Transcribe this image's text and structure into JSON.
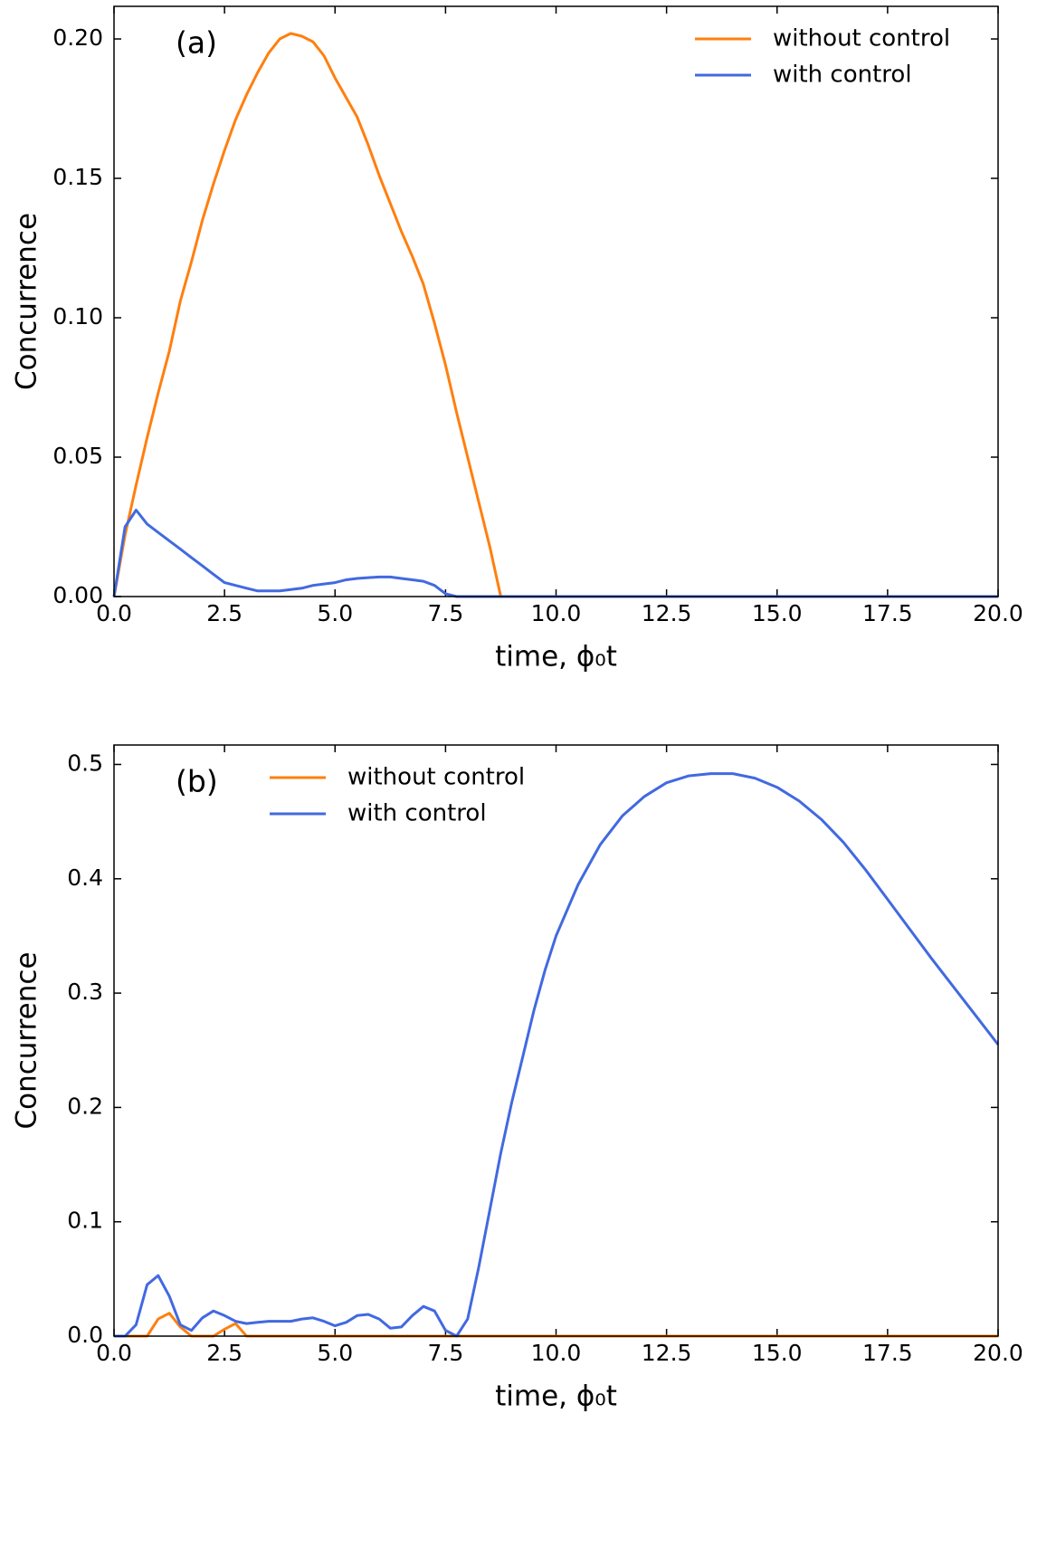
{
  "chart_data": [
    {
      "type": "line",
      "annotation": "(a)",
      "x_label": "time, ϕ₀t",
      "y_label": "Concurrence",
      "legend": "upper right",
      "x": [
        0,
        0.25,
        0.5,
        0.75,
        1,
        1.25,
        1.5,
        1.75,
        2,
        2.25,
        2.5,
        2.75,
        3,
        3.25,
        3.5,
        3.75,
        4,
        4.25,
        4.5,
        4.75,
        5,
        5.25,
        5.5,
        5.75,
        6,
        6.25,
        6.5,
        6.75,
        7,
        7.25,
        7.5,
        7.75,
        8,
        8.25,
        8.5,
        8.75,
        9,
        9.25,
        9.5,
        9.75,
        10,
        10.5,
        11,
        11.5,
        12,
        12.5,
        13,
        13.5,
        14,
        14.5,
        15,
        15.5,
        16,
        16.5,
        17,
        17.5,
        18,
        18.5,
        19,
        19.5,
        20
      ],
      "series": [
        {
          "name": "without control",
          "color": "#ff7f0e",
          "values": [
            0,
            0.022,
            0.04,
            0.057,
            0.073,
            0.088,
            0.106,
            0.12,
            0.135,
            0.148,
            0.16,
            0.171,
            0.18,
            0.188,
            0.195,
            0.2,
            0.202,
            0.201,
            0.199,
            0.194,
            0.186,
            0.179,
            0.172,
            0.162,
            0.151,
            0.141,
            0.131,
            0.122,
            0.112,
            0.098,
            0.083,
            0.066,
            0.05,
            0.034,
            0.018,
            0,
            0,
            0,
            0,
            0,
            0,
            0,
            0,
            0,
            0,
            0,
            0,
            0,
            0,
            0,
            0,
            0,
            0,
            0,
            0,
            0,
            0,
            0,
            0,
            0,
            0
          ]
        },
        {
          "name": "with control",
          "color": "#4169e1",
          "values": [
            0,
            0.025,
            0.031,
            0.026,
            0.023,
            0.02,
            0.017,
            0.014,
            0.011,
            0.008,
            0.005,
            0.004,
            0.003,
            0.002,
            0.002,
            0.002,
            0.0025,
            0.003,
            0.004,
            0.0045,
            0.005,
            0.006,
            0.0065,
            0.0068,
            0.007,
            0.007,
            0.0065,
            0.006,
            0.0055,
            0.004,
            0.001,
            0,
            0,
            0,
            0,
            0,
            0,
            0,
            0,
            0,
            0,
            0,
            0,
            0,
            0,
            0,
            0,
            0,
            0,
            0,
            0,
            0,
            0,
            0,
            0,
            0,
            0,
            0,
            0,
            0,
            0
          ]
        }
      ],
      "xlim": [
        0,
        20
      ],
      "xticks": [
        {
          "value": 0,
          "label": "0.0"
        },
        {
          "value": 2.5,
          "label": "2.5"
        },
        {
          "value": 5,
          "label": "5.0"
        },
        {
          "value": 7.5,
          "label": "7.5"
        },
        {
          "value": 10,
          "label": "10.0"
        },
        {
          "value": 12.5,
          "label": "12.5"
        },
        {
          "value": 15,
          "label": "15.0"
        },
        {
          "value": 17.5,
          "label": "17.5"
        },
        {
          "value": 20,
          "label": "20.0"
        }
      ],
      "ylim": [
        0,
        0.2117
      ],
      "yticks": [
        {
          "value": 0,
          "label": "0.00"
        },
        {
          "value": 0.05,
          "label": "0.05"
        },
        {
          "value": 0.1,
          "label": "0.10"
        },
        {
          "value": 0.15,
          "label": "0.15"
        },
        {
          "value": 0.2,
          "label": "0.20"
        }
      ]
    },
    {
      "type": "line",
      "annotation": "(b)",
      "x_label": "time, ϕ₀t",
      "y_label": "Concurrence",
      "legend": "upper left",
      "x": [
        0,
        0.25,
        0.5,
        0.75,
        1,
        1.25,
        1.5,
        1.75,
        2,
        2.25,
        2.5,
        2.75,
        3,
        3.25,
        3.5,
        3.75,
        4,
        4.25,
        4.5,
        4.75,
        5,
        5.25,
        5.5,
        5.75,
        6,
        6.25,
        6.5,
        6.75,
        7,
        7.25,
        7.5,
        7.75,
        8,
        8.25,
        8.5,
        8.75,
        9,
        9.25,
        9.5,
        9.75,
        10,
        10.5,
        11,
        11.5,
        12,
        12.5,
        13,
        13.5,
        14,
        14.5,
        15,
        15.5,
        16,
        16.5,
        17,
        17.5,
        18,
        18.5,
        19,
        19.5,
        20
      ],
      "series": [
        {
          "name": "without control",
          "color": "#ff7f0e",
          "values": [
            0,
            0,
            0,
            0,
            0.015,
            0.02,
            0.008,
            0,
            0,
            0,
            0.006,
            0.011,
            0,
            0,
            0,
            0,
            0,
            0,
            0,
            0,
            0,
            0,
            0,
            0,
            0,
            0,
            0,
            0,
            0,
            0,
            0,
            0,
            0,
            0,
            0,
            0,
            0,
            0,
            0,
            0,
            0,
            0,
            0,
            0,
            0,
            0,
            0,
            0,
            0,
            0,
            0,
            0,
            0,
            0,
            0,
            0,
            0,
            0,
            0,
            0,
            0
          ]
        },
        {
          "name": "with control",
          "color": "#4169e1",
          "values": [
            0,
            0,
            0.01,
            0.045,
            0.053,
            0.035,
            0.01,
            0.005,
            0.016,
            0.022,
            0.018,
            0.013,
            0.011,
            0.012,
            0.013,
            0.013,
            0.013,
            0.015,
            0.016,
            0.013,
            0.009,
            0.012,
            0.018,
            0.019,
            0.015,
            0.007,
            0.008,
            0.018,
            0.026,
            0.022,
            0.005,
            0,
            0.015,
            0.06,
            0.11,
            0.16,
            0.205,
            0.245,
            0.285,
            0.32,
            0.35,
            0.395,
            0.43,
            0.455,
            0.472,
            0.484,
            0.49,
            0.492,
            0.492,
            0.488,
            0.48,
            0.468,
            0.452,
            0.432,
            0.408,
            0.382,
            0.356,
            0.33,
            0.305,
            0.28,
            0.255
          ]
        }
      ],
      "xlim": [
        0,
        20
      ],
      "xticks": [
        {
          "value": 0,
          "label": "0.0"
        },
        {
          "value": 2.5,
          "label": "2.5"
        },
        {
          "value": 5,
          "label": "5.0"
        },
        {
          "value": 7.5,
          "label": "7.5"
        },
        {
          "value": 10,
          "label": "10.0"
        },
        {
          "value": 12.5,
          "label": "12.5"
        },
        {
          "value": 15,
          "label": "15.0"
        },
        {
          "value": 17.5,
          "label": "17.5"
        },
        {
          "value": 20,
          "label": "20.0"
        }
      ],
      "ylim": [
        0,
        0.517
      ],
      "yticks": [
        {
          "value": 0,
          "label": "0.0"
        },
        {
          "value": 0.1,
          "label": "0.1"
        },
        {
          "value": 0.2,
          "label": "0.2"
        },
        {
          "value": 0.3,
          "label": "0.3"
        },
        {
          "value": 0.4,
          "label": "0.4"
        },
        {
          "value": 0.5,
          "label": "0.5"
        }
      ]
    }
  ]
}
